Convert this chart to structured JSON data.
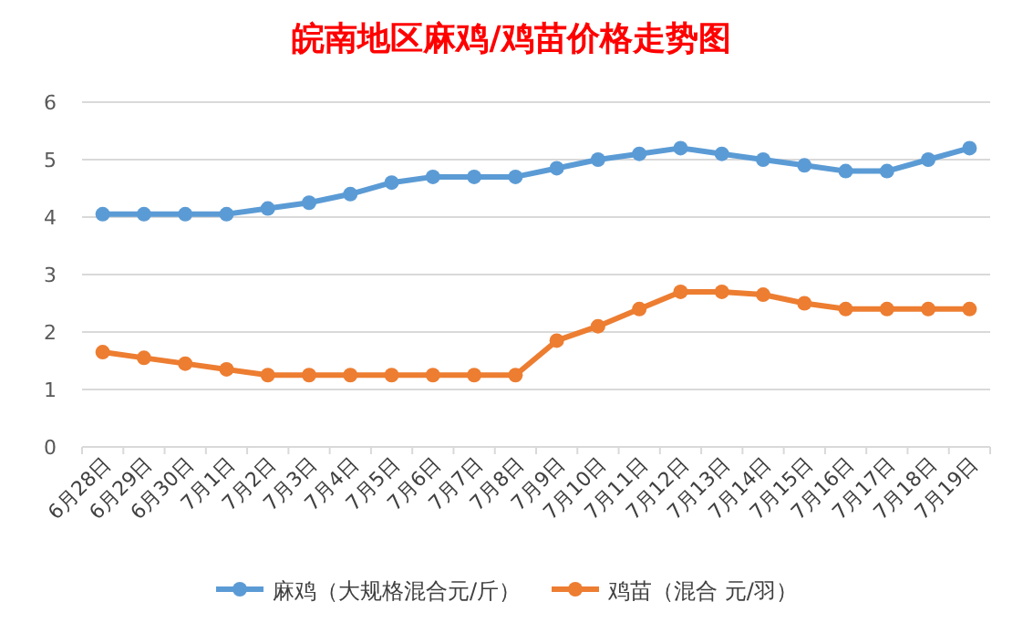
{
  "chart_data": {
    "type": "line",
    "title": "皖南地区麻鸡/鸡苗价格走势图",
    "categories": [
      "6月28日",
      "6月29日",
      "6月30日",
      "7月1日",
      "7月2日",
      "7月3日",
      "7月4日",
      "7月5日",
      "7月6日",
      "7月7日",
      "7月8日",
      "7月9日",
      "7月10日",
      "7月11日",
      "7月12日",
      "7月13日",
      "7月14日",
      "7月15日",
      "7月16日",
      "7月17日",
      "7月18日",
      "7月19日"
    ],
    "series": [
      {
        "name": "麻鸡（大规格混合元/斤）",
        "color": "#5b9bd5",
        "values": [
          4.05,
          4.05,
          4.05,
          4.05,
          4.15,
          4.25,
          4.4,
          4.6,
          4.7,
          4.7,
          4.7,
          4.85,
          5.0,
          5.1,
          5.2,
          5.1,
          5.0,
          4.9,
          4.8,
          4.8,
          5.0,
          5.2
        ]
      },
      {
        "name": "鸡苗（混合 元/羽）",
        "color": "#ed7d31",
        "values": [
          1.65,
          1.55,
          1.45,
          1.35,
          1.25,
          1.25,
          1.25,
          1.25,
          1.25,
          1.25,
          1.25,
          1.85,
          2.1,
          2.4,
          2.7,
          2.7,
          2.65,
          2.5,
          2.4,
          2.4,
          2.4,
          2.4
        ]
      }
    ],
    "ylim": [
      0,
      6
    ],
    "yticks": [
      0,
      1,
      2,
      3,
      4,
      5,
      6
    ],
    "grid": "y",
    "legend": "bottom",
    "marker": "circle",
    "line_style": "solid"
  }
}
